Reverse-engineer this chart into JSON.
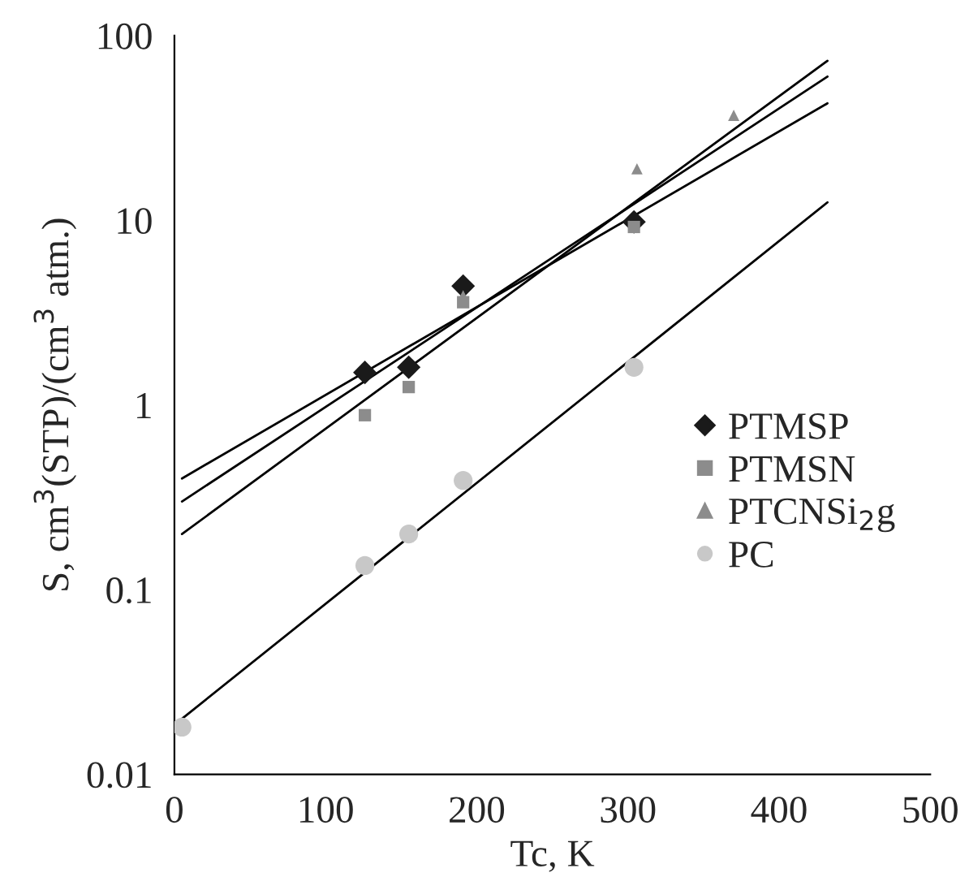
{
  "chart_data": {
    "type": "scatter",
    "xlabel": "Tc, K",
    "ylabel": "S, cm$^{3}$(STP)/(cm$^{3}$ atm.)",
    "log": "y",
    "xlim": [
      0,
      500
    ],
    "ylim": [
      0.01,
      100
    ],
    "xticks": [
      0,
      100,
      200,
      300,
      400,
      500
    ],
    "yticks": [
      0.01,
      0.1,
      1,
      10,
      100
    ],
    "grid": false,
    "legend": "right",
    "series": [
      {
        "name": "PTMSP",
        "color": "#1a1a1a",
        "marker": "diamond",
        "x": [
          126,
          155,
          191,
          304
        ],
        "values": [
          1.5,
          1.6,
          4.4,
          9.8
        ]
      },
      {
        "name": "PTMSN",
        "color": "#8c8c8c",
        "marker": "square",
        "x": [
          126,
          155,
          191,
          304
        ],
        "values": [
          0.88,
          1.25,
          3.6,
          9.2
        ]
      },
      {
        "name": "PTCNSi$_{2}$g",
        "color": "#8c8c8c",
        "marker": "triangle",
        "x": [
          191,
          306,
          370
        ],
        "values": [
          3.9,
          19,
          37
        ]
      },
      {
        "name": "PC",
        "color": "#c8c8c8",
        "marker": "circle",
        "x": [
          5,
          126,
          155,
          191,
          304
        ],
        "values": [
          0.018,
          0.135,
          0.2,
          0.39,
          1.6
        ]
      },
      {
        "type": "line",
        "color": "#000000",
        "marker": "none",
        "x": [
          5,
          432
        ],
        "values": [
          0.4,
          43
        ]
      },
      {
        "type": "line",
        "color": "#000000",
        "marker": "none",
        "x": [
          5,
          432
        ],
        "values": [
          0.3,
          60
        ]
      },
      {
        "type": "line",
        "color": "#000000",
        "marker": "none",
        "x": [
          5,
          432
        ],
        "values": [
          0.2,
          73
        ]
      },
      {
        "type": "line",
        "color": "#000000",
        "marker": "none",
        "x": [
          5,
          432
        ],
        "values": [
          0.02,
          12.5
        ]
      }
    ]
  }
}
